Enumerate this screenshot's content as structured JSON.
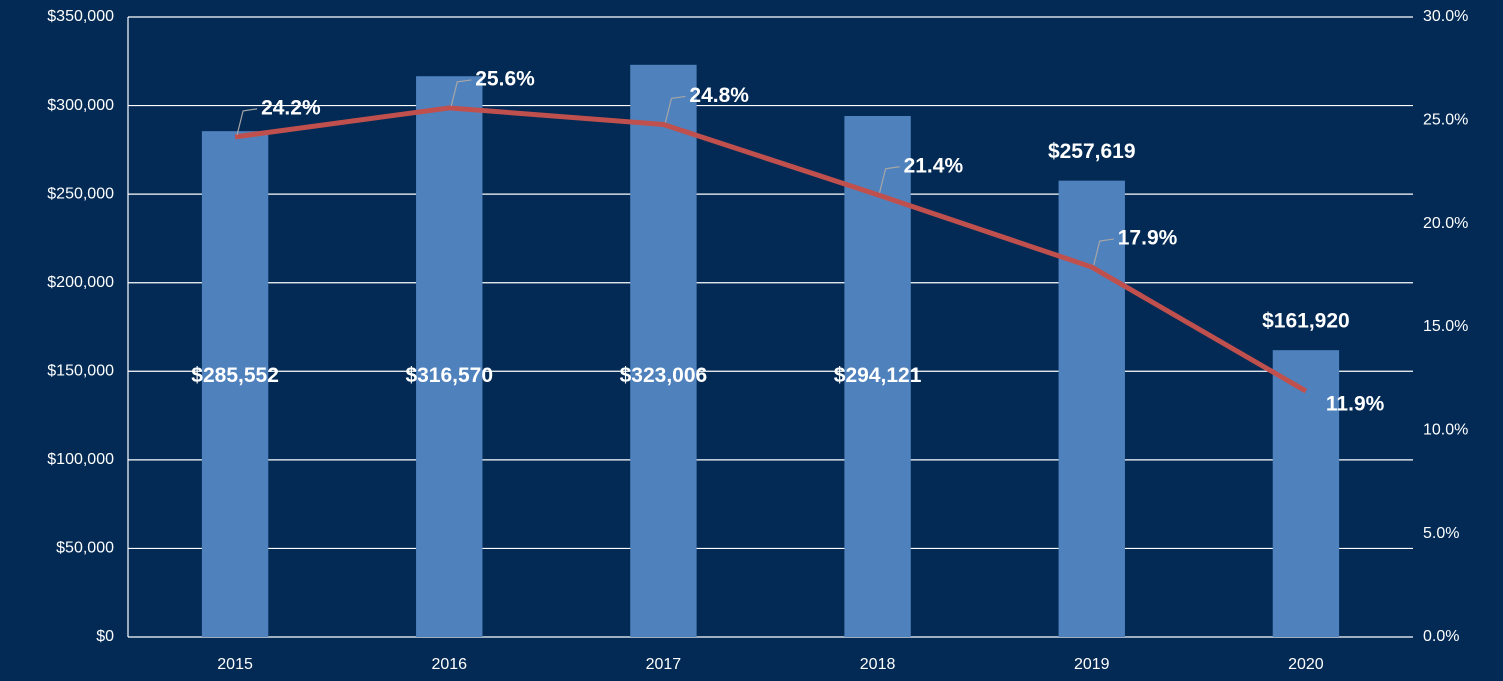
{
  "chart_data": {
    "type": "bar",
    "categories": [
      "2015",
      "2016",
      "2017",
      "2018",
      "2019",
      "2020"
    ],
    "series": [
      {
        "type": "bar",
        "color": "#4f81bd",
        "values": [
          285552,
          316570,
          323006,
          294121,
          257619,
          161920
        ],
        "value_labels": [
          "$285,552",
          "$316,570",
          "$323,006",
          "$294,121",
          "$257,619",
          "$161,920"
        ]
      },
      {
        "type": "line",
        "axis": "y2",
        "color": "#c0504d",
        "values": [
          24.2,
          25.6,
          24.8,
          21.4,
          17.9,
          11.9
        ],
        "value_labels": [
          "24.2%",
          "25.6%",
          "24.8%",
          "21.4%",
          "17.9%",
          "11.9%"
        ]
      }
    ],
    "ylim": [
      0,
      350000
    ],
    "yticks": [
      {
        "value": 0,
        "label": "$0"
      },
      {
        "value": 50000,
        "label": "$50,000"
      },
      {
        "value": 100000,
        "label": "$100,000"
      },
      {
        "value": 150000,
        "label": "$150,000"
      },
      {
        "value": 200000,
        "label": "$200,000"
      },
      {
        "value": 250000,
        "label": "$250,000"
      },
      {
        "value": 300000,
        "label": "$300,000"
      },
      {
        "value": 350000,
        "label": "$350,000"
      }
    ],
    "y2lim": [
      0,
      30
    ],
    "y2ticks": [
      {
        "value": 0,
        "label": "0.0%"
      },
      {
        "value": 5,
        "label": "5.0%"
      },
      {
        "value": 10,
        "label": "10.0%"
      },
      {
        "value": 15,
        "label": "15.0%"
      },
      {
        "value": 20,
        "label": "20.0%"
      },
      {
        "value": 25,
        "label": "25.0%"
      },
      {
        "value": 30,
        "label": "30.0%"
      }
    ],
    "grid": true
  }
}
